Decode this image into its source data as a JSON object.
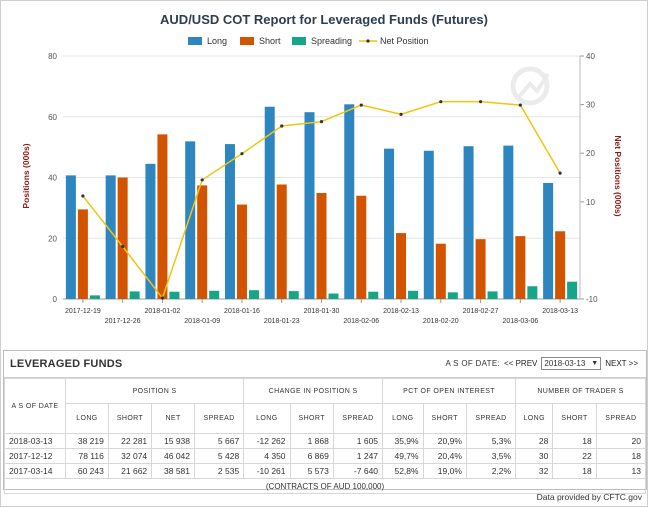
{
  "colors": {
    "long": "#2e86c1",
    "short": "#d35400",
    "spreading": "#17a589",
    "net": "#f1c40f",
    "title": "#2c3e50",
    "axis_title": "#8b1a1a",
    "neg": "#cc2222",
    "pos": "#2a8a2a"
  },
  "chart_data": {
    "type": "bar",
    "title": "AUD/USD COT Report for Leveraged Funds (Futures)",
    "ylabel": "Positions (000s)",
    "y2label": "Net Positions (000s)",
    "ylim": [
      0,
      80
    ],
    "yticks": [
      "0",
      "20",
      "40",
      "60",
      "80"
    ],
    "y2lim": [
      -10,
      40
    ],
    "y2ticks": [
      "-10",
      "10",
      "20",
      "30",
      "40"
    ],
    "categories": [
      "2017-12-19",
      "2017-12-26",
      "2018-01-02",
      "2018-01-09",
      "2018-01-16",
      "2018-01-23",
      "2018-01-30",
      "2018-02-06",
      "2018-02-13",
      "2018-02-20",
      "2018-02-27",
      "2018-03-06",
      "2018-03-13"
    ],
    "series": [
      {
        "name": "Long",
        "type": "bar",
        "axis": "left",
        "values": [
          40.7,
          40.7,
          44.5,
          51.9,
          51.0,
          63.3,
          61.5,
          64.1,
          49.5,
          48.8,
          50.3,
          50.5,
          38.2
        ]
      },
      {
        "name": "Short",
        "type": "bar",
        "axis": "left",
        "values": [
          29.5,
          40.0,
          54.2,
          37.4,
          31.1,
          37.7,
          34.9,
          34.0,
          21.7,
          18.2,
          19.7,
          20.7,
          22.3
        ]
      },
      {
        "name": "Spreading",
        "type": "bar",
        "axis": "left",
        "values": [
          1.2,
          2.5,
          2.4,
          2.7,
          2.9,
          2.6,
          1.8,
          2.4,
          2.7,
          2.2,
          2.5,
          4.2,
          5.7
        ]
      },
      {
        "name": "Net Position",
        "type": "line",
        "axis": "right",
        "values": [
          11.2,
          0.8,
          -9.8,
          14.5,
          19.9,
          25.6,
          26.5,
          29.9,
          28.0,
          30.6,
          30.6,
          29.9,
          15.9
        ]
      }
    ],
    "legend": "top"
  },
  "table": {
    "title": "LEVERAGED FUNDS",
    "asof_label": "A S OF DATE:",
    "prev_label": "<< PREV",
    "next_label": "NEXT >>",
    "selected_date": "2018-03-13",
    "col_asof": "A S OF DATE",
    "groups": [
      "POSITION S",
      "CHANGE IN POSITION S",
      "PCT OF OPEN INTEREST",
      "NUMBER OF TRADER S"
    ],
    "subheaders": [
      "LONG",
      "SHORT",
      "NET",
      "SPREAD",
      "LONG",
      "SHORT",
      "SPREAD",
      "LONG",
      "SHORT",
      "SPREAD",
      "LONG",
      "SHORT",
      "SPREAD"
    ],
    "rows": [
      {
        "date": "2018-03-13",
        "cells": [
          "38 219",
          "22 281",
          "15 938",
          "5 667",
          "-12 262",
          "1 868",
          "1 605",
          "35,9%",
          "20,9%",
          "5,3%",
          "28",
          "18",
          "20"
        ]
      },
      {
        "date": "2017-12-12",
        "cells": [
          "78 116",
          "32 074",
          "46 042",
          "5 428",
          "4 350",
          "6 869",
          "1 247",
          "49,7%",
          "20,4%",
          "3,5%",
          "30",
          "22",
          "18"
        ]
      },
      {
        "date": "2017-03-14",
        "cells": [
          "60 243",
          "21 662",
          "38 581",
          "2 535",
          "-10 261",
          "5 573",
          "-7 640",
          "52,8%",
          "19,0%",
          "2,2%",
          "32",
          "18",
          "13"
        ]
      }
    ],
    "footnote": "(CONTRACTS OF AUD 100,000)",
    "credit": "Data provided by CFTC.gov"
  }
}
